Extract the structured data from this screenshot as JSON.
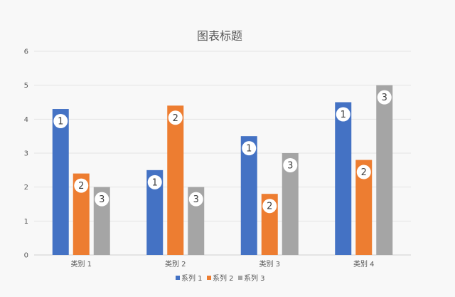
{
  "chart_data": {
    "type": "bar",
    "title": "图表标题",
    "xlabel": "",
    "ylabel": "",
    "ylim": [
      0,
      6
    ],
    "yticks": [
      "0",
      "1",
      "2",
      "3",
      "4",
      "5",
      "6"
    ],
    "grid": true,
    "legend_position": "bottom",
    "categories": [
      "类别 1",
      "类别 2",
      "类别 3",
      "类别 4"
    ],
    "series": [
      {
        "name": "系列 1",
        "color": "#4472c4",
        "label": "1",
        "values": [
          4.3,
          2.5,
          3.5,
          4.5
        ]
      },
      {
        "name": "系列 2",
        "color": "#ed7d31",
        "label": "2",
        "values": [
          2.4,
          4.4,
          1.8,
          2.8
        ]
      },
      {
        "name": "系列 3",
        "color": "#a5a5a5",
        "label": "3",
        "values": [
          2,
          2,
          3,
          5
        ]
      }
    ]
  }
}
